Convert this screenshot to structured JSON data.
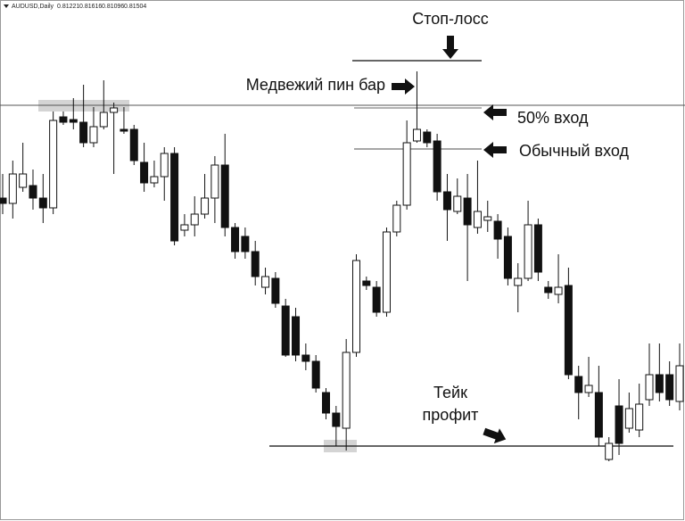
{
  "chart_data": {
    "type": "candlestick",
    "symbol": "AUDUSD,Daily",
    "quote": [
      0.81221,
      0.81616,
      0.81096,
      0.81504
    ],
    "ylim": [
      0.783,
      0.84
    ],
    "categories": [
      null,
      null,
      null,
      null,
      null,
      null,
      null,
      null,
      null,
      null,
      null,
      null,
      null,
      null,
      null,
      null,
      null,
      null,
      null,
      null,
      null,
      null,
      null,
      null,
      null,
      null,
      null,
      null,
      null,
      null,
      null,
      null,
      null,
      null,
      null,
      null,
      null,
      null,
      null,
      null,
      null,
      null,
      null,
      null,
      null,
      null,
      null,
      null,
      null,
      null,
      null,
      null,
      null,
      null,
      null,
      null,
      null,
      null,
      null,
      null,
      null,
      null,
      null,
      null,
      null,
      null,
      null,
      null
    ],
    "open": [
      0.8192,
      0.8186,
      0.8204,
      0.8206,
      0.8192,
      0.8181,
      0.8283,
      0.828,
      0.8277,
      0.8254,
      0.8272,
      0.8288,
      0.8269,
      0.8269,
      0.8232,
      0.8209,
      0.8216,
      0.8242,
      0.8156,
      0.8162,
      0.8174,
      0.8192,
      0.8229,
      0.8159,
      0.8149,
      0.8132,
      0.8092,
      0.8102,
      0.8071,
      0.8059,
      0.8016,
      0.8009,
      0.7974,
      0.7951,
      0.7934,
      0.8019,
      0.8099,
      0.8092,
      0.8064,
      0.8154,
      0.8184,
      0.8256,
      0.8266,
      0.8256,
      0.8199,
      0.8177,
      0.8192,
      0.8159,
      0.8167,
      0.8166,
      0.8149,
      0.8094,
      0.8102,
      0.8162,
      0.8092,
      0.8084,
      0.8094,
      0.7992,
      0.7974,
      0.7974,
      0.7899,
      0.7959,
      0.7934,
      0.7932,
      0.7966,
      0.7994,
      0.7994,
      0.7964
    ],
    "high": [
      0.8219,
      0.8234,
      0.8254,
      0.8224,
      0.8219,
      0.8289,
      0.8289,
      0.8304,
      0.8319,
      0.8294,
      0.8324,
      0.8299,
      0.8294,
      0.8274,
      0.8254,
      0.8234,
      0.8249,
      0.8249,
      0.8174,
      0.8194,
      0.8219,
      0.8239,
      0.8264,
      0.8164,
      0.8159,
      0.8144,
      0.8114,
      0.8109,
      0.8079,
      0.8069,
      0.8029,
      0.8016,
      0.7979,
      0.7959,
      0.8034,
      0.8129,
      0.8104,
      0.8099,
      0.8159,
      0.8189,
      0.8279,
      0.8334,
      0.8269,
      0.8264,
      0.8219,
      0.8214,
      0.8219,
      0.8234,
      0.8189,
      0.8174,
      0.8159,
      0.8119,
      0.8189,
      0.8169,
      0.8099,
      0.8129,
      0.8114,
      0.8004,
      0.8014,
      0.8004,
      0.7924,
      0.7989,
      0.7974,
      0.7984,
      0.8029,
      0.8029,
      0.8009,
      0.8029
    ],
    "low": [
      0.8174,
      0.8169,
      0.8199,
      0.8179,
      0.8164,
      0.8174,
      0.8274,
      0.8269,
      0.8249,
      0.8249,
      0.8269,
      0.8219,
      0.8264,
      0.8229,
      0.8199,
      0.8204,
      0.8189,
      0.8139,
      0.8149,
      0.8149,
      0.8169,
      0.8164,
      0.8149,
      0.8124,
      0.8124,
      0.8094,
      0.8084,
      0.8069,
      0.8014,
      0.8009,
      0.7999,
      0.7974,
      0.7944,
      0.7914,
      0.7909,
      0.8014,
      0.8089,
      0.8059,
      0.8059,
      0.8149,
      0.8179,
      0.8254,
      0.8249,
      0.8189,
      0.8144,
      0.8174,
      0.8099,
      0.8152,
      0.8154,
      0.8124,
      0.8094,
      0.8064,
      0.8099,
      0.8099,
      0.8079,
      0.8074,
      0.7989,
      0.7944,
      0.7969,
      0.7914,
      0.7897,
      0.7904,
      0.7929,
      0.7924,
      0.7959,
      0.7964,
      0.7959,
      0.7954
    ],
    "close": [
      0.8186,
      0.8219,
      0.8219,
      0.8192,
      0.8181,
      0.8279,
      0.8277,
      0.8277,
      0.8254,
      0.8272,
      0.8288,
      0.8293,
      0.8267,
      0.8234,
      0.8209,
      0.8216,
      0.8242,
      0.8144,
      0.8162,
      0.8174,
      0.8192,
      0.8229,
      0.8159,
      0.8132,
      0.8132,
      0.8104,
      0.8104,
      0.8074,
      0.8016,
      0.8016,
      0.8009,
      0.7979,
      0.7951,
      0.7936,
      0.8019,
      0.8122,
      0.8094,
      0.8064,
      0.8154,
      0.8184,
      0.8254,
      0.8269,
      0.8254,
      0.8199,
      0.8179,
      0.8194,
      0.8162,
      0.8177,
      0.8171,
      0.8146,
      0.8102,
      0.8102,
      0.8162,
      0.8109,
      0.8086,
      0.8092,
      0.7994,
      0.7974,
      0.7982,
      0.7924,
      0.7917,
      0.7917,
      0.7956,
      0.7961,
      0.7994,
      0.7974,
      0.7966,
      0.8004
    ],
    "levels": [
      0.8296,
      0.8346,
      0.8293,
      0.8247,
      0.7914
    ],
    "annotations": [
      "Стоп-лосс",
      "Медвежий пин бар",
      "50% вход",
      "Обычный вход",
      "Тейк",
      "профит"
    ]
  }
}
